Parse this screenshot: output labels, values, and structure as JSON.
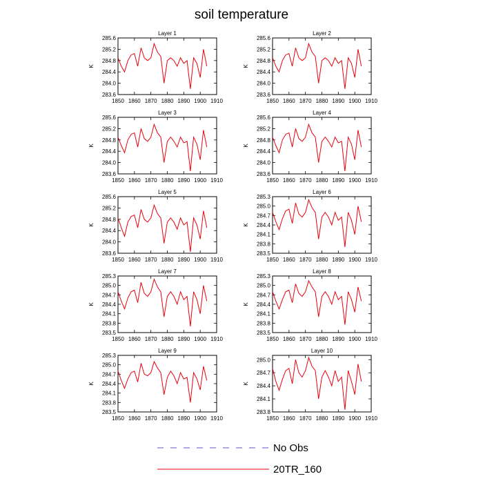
{
  "title": "soil temperature",
  "legend": {
    "items": [
      {
        "label": "No Obs",
        "color": "#5555cc",
        "dash": true
      },
      {
        "label": "20TR_160",
        "color": "#e8000b",
        "dash": false
      }
    ]
  },
  "chart_data": {
    "type": "line",
    "x_axis": {
      "ticks": [
        1850,
        1860,
        1870,
        1880,
        1890,
        1900,
        1910
      ],
      "range": [
        1850,
        1910
      ]
    },
    "x": [
      1850,
      1852,
      1854,
      1856,
      1858,
      1860,
      1862,
      1864,
      1866,
      1868,
      1870,
      1872,
      1874,
      1876,
      1878,
      1880,
      1882,
      1884,
      1886,
      1888,
      1890,
      1892,
      1894,
      1896,
      1898,
      1900,
      1902,
      1904
    ],
    "panels": [
      {
        "title": "Layer 1",
        "ylabel": "K",
        "ylim": [
          283.6,
          285.6
        ],
        "yticks": [
          "283.6",
          "284.0",
          "284.4",
          "284.8",
          "285.2",
          "285.6"
        ],
        "series": [
          {
            "name": "20TR_160",
            "values": [
              284.9,
              284.6,
              284.4,
              284.8,
              285.0,
              285.05,
              284.6,
              285.25,
              284.9,
              284.8,
              284.9,
              285.4,
              285.1,
              284.95,
              284.0,
              284.8,
              284.9,
              284.8,
              284.6,
              284.9,
              284.7,
              284.8,
              283.8,
              284.9,
              284.7,
              284.2,
              285.2,
              284.6
            ]
          }
        ]
      },
      {
        "title": "Layer 2",
        "ylabel": "K",
        "ylim": [
          283.6,
          285.6
        ],
        "yticks": [
          "283.6",
          "284.0",
          "284.4",
          "284.8",
          "285.2",
          "285.6"
        ],
        "series": [
          {
            "name": "20TR_160",
            "values": [
              284.9,
              284.6,
              284.4,
              284.8,
              285.0,
              285.05,
              284.6,
              285.25,
              284.9,
              284.8,
              284.9,
              285.4,
              285.1,
              284.95,
              284.0,
              284.8,
              284.9,
              284.8,
              284.6,
              284.9,
              284.7,
              284.8,
              283.8,
              284.9,
              284.7,
              284.2,
              285.2,
              284.6
            ]
          }
        ]
      },
      {
        "title": "Layer 3",
        "ylabel": "K",
        "ylim": [
          283.6,
          285.6
        ],
        "yticks": [
          "283.6",
          "284.0",
          "284.4",
          "284.8",
          "285.2",
          "285.6"
        ],
        "series": [
          {
            "name": "20TR_160",
            "values": [
              284.9,
              284.6,
              284.35,
              284.8,
              285.0,
              285.05,
              284.55,
              285.2,
              284.85,
              284.75,
              284.9,
              285.35,
              285.05,
              284.9,
              284.0,
              284.75,
              284.9,
              284.75,
              284.55,
              284.9,
              284.7,
              284.75,
              283.7,
              284.9,
              284.65,
              284.1,
              285.15,
              284.55
            ]
          }
        ]
      },
      {
        "title": "Layer 4",
        "ylabel": "K",
        "ylim": [
          283.6,
          285.6
        ],
        "yticks": [
          "283.6",
          "284.0",
          "284.4",
          "284.8",
          "285.2",
          "285.6"
        ],
        "series": [
          {
            "name": "20TR_160",
            "values": [
              284.9,
              284.6,
              284.35,
              284.8,
              285.0,
              285.05,
              284.55,
              285.2,
              284.85,
              284.75,
              284.9,
              285.35,
              285.05,
              284.9,
              284.0,
              284.75,
              284.9,
              284.75,
              284.55,
              284.9,
              284.7,
              284.75,
              283.7,
              284.9,
              284.65,
              284.1,
              285.15,
              284.55
            ]
          }
        ]
      },
      {
        "title": "Layer 5",
        "ylabel": "K",
        "ylim": [
          283.6,
          285.6
        ],
        "yticks": [
          "283.6",
          "284.0",
          "284.4",
          "284.8",
          "285.2",
          "285.6"
        ],
        "series": [
          {
            "name": "20TR_160",
            "values": [
              284.85,
              284.5,
              284.2,
              284.7,
              284.9,
              284.95,
              284.5,
              285.15,
              284.8,
              284.7,
              284.85,
              285.3,
              285.0,
              284.85,
              283.95,
              284.7,
              284.85,
              284.7,
              284.45,
              284.85,
              284.6,
              284.7,
              283.65,
              284.85,
              284.6,
              284.1,
              285.1,
              284.5
            ]
          }
        ]
      },
      {
        "title": "Layer 6",
        "ylabel": "K",
        "ylim": [
          283.5,
          285.3
        ],
        "yticks": [
          "283.5",
          "283.8",
          "284.1",
          "284.4",
          "284.7",
          "285.0",
          "285.3"
        ],
        "series": [
          {
            "name": "20TR_160",
            "values": [
              284.8,
              284.5,
              284.25,
              284.6,
              284.85,
              284.9,
              284.45,
              285.1,
              284.75,
              284.65,
              284.8,
              285.2,
              284.95,
              284.8,
              283.95,
              284.65,
              284.8,
              284.65,
              284.4,
              284.8,
              284.55,
              284.65,
              283.7,
              284.8,
              284.55,
              284.1,
              285.0,
              284.5
            ]
          }
        ]
      },
      {
        "title": "Layer 7",
        "ylabel": "K",
        "ylim": [
          283.5,
          285.3
        ],
        "yticks": [
          "283.5",
          "283.8",
          "284.1",
          "284.4",
          "284.7",
          "285.0",
          "285.3"
        ],
        "series": [
          {
            "name": "20TR_160",
            "values": [
              284.8,
              284.5,
              284.25,
              284.6,
              284.8,
              284.85,
              284.45,
              285.1,
              284.75,
              284.65,
              284.8,
              285.2,
              284.95,
              284.8,
              284.0,
              284.65,
              284.8,
              284.65,
              284.4,
              284.8,
              284.55,
              284.65,
              283.7,
              284.8,
              284.55,
              284.1,
              285.0,
              284.5
            ]
          }
        ]
      },
      {
        "title": "Layer 8",
        "ylabel": "K",
        "ylim": [
          283.5,
          285.3
        ],
        "yticks": [
          "283.5",
          "283.8",
          "284.1",
          "284.4",
          "284.7",
          "285.0",
          "285.3"
        ],
        "series": [
          {
            "name": "20TR_160",
            "values": [
              284.8,
              284.5,
              284.25,
              284.55,
              284.8,
              284.85,
              284.45,
              285.05,
              284.75,
              284.65,
              284.8,
              285.15,
              284.95,
              284.8,
              284.0,
              284.65,
              284.8,
              284.65,
              284.4,
              284.8,
              284.55,
              284.65,
              283.75,
              284.8,
              284.55,
              284.15,
              284.95,
              284.5
            ]
          }
        ]
      },
      {
        "title": "Layer 9",
        "ylabel": "K",
        "ylim": [
          283.5,
          285.3
        ],
        "yticks": [
          "283.5",
          "283.8",
          "284.1",
          "284.4",
          "284.7",
          "285.0",
          "285.3"
        ],
        "series": [
          {
            "name": "20TR_160",
            "values": [
              284.8,
              284.5,
              284.25,
              284.55,
              284.75,
              284.8,
              284.45,
              285.05,
              284.7,
              284.65,
              284.75,
              285.1,
              284.9,
              284.75,
              284.05,
              284.6,
              284.8,
              284.65,
              284.4,
              284.75,
              284.55,
              284.6,
              283.8,
              284.75,
              284.55,
              284.2,
              284.95,
              284.5
            ]
          }
        ]
      },
      {
        "title": "Layer 10",
        "ylabel": "K",
        "ylim": [
          283.8,
          285.1
        ],
        "yticks": [
          "283.8",
          "284.1",
          "284.4",
          "284.7",
          "285.0"
        ],
        "series": [
          {
            "name": "20TR_160",
            "values": [
              284.8,
              284.5,
              284.3,
              284.55,
              284.75,
              284.8,
              284.45,
              285.0,
              284.7,
              284.6,
              284.75,
              285.05,
              284.85,
              284.75,
              284.1,
              284.6,
              284.75,
              284.6,
              284.4,
              284.75,
              284.5,
              284.6,
              283.85,
              284.75,
              284.5,
              284.2,
              284.9,
              284.5
            ]
          }
        ]
      }
    ]
  }
}
